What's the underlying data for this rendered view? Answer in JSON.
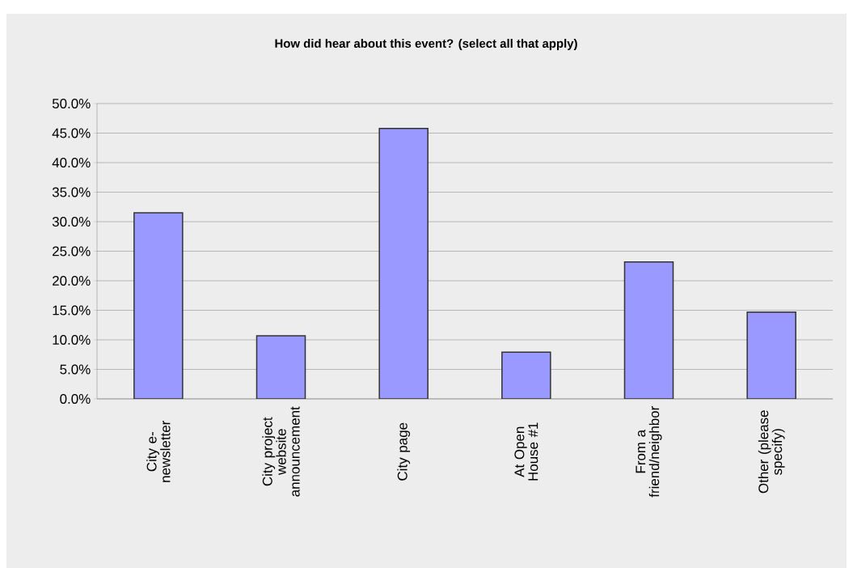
{
  "chart_data": {
    "type": "bar",
    "title": "How did hear about this event? (select all that apply)",
    "categories": [
      "City e-newsletter",
      "City project website announcement",
      "City page",
      "At Open House #1",
      "From a friend/neighbor",
      "Other (please specify)"
    ],
    "values": [
      31.5,
      10.7,
      45.8,
      7.9,
      23.2,
      14.7
    ],
    "color": "#9999ff",
    "ylim": [
      0,
      50
    ],
    "yticks": [
      {
        "value": 0,
        "label": "0.0%"
      },
      {
        "value": 5,
        "label": "5.0%"
      },
      {
        "value": 10,
        "label": "10.0%"
      },
      {
        "value": 15,
        "label": "15.0%"
      },
      {
        "value": 20,
        "label": "20.0%"
      },
      {
        "value": 25,
        "label": "25.0%"
      },
      {
        "value": 30,
        "label": "30.0%"
      },
      {
        "value": 35,
        "label": "35.0%"
      },
      {
        "value": 40,
        "label": "40.0%"
      },
      {
        "value": 45,
        "label": "45.0%"
      },
      {
        "value": 50,
        "label": "50.0%"
      }
    ],
    "grid": "y"
  }
}
